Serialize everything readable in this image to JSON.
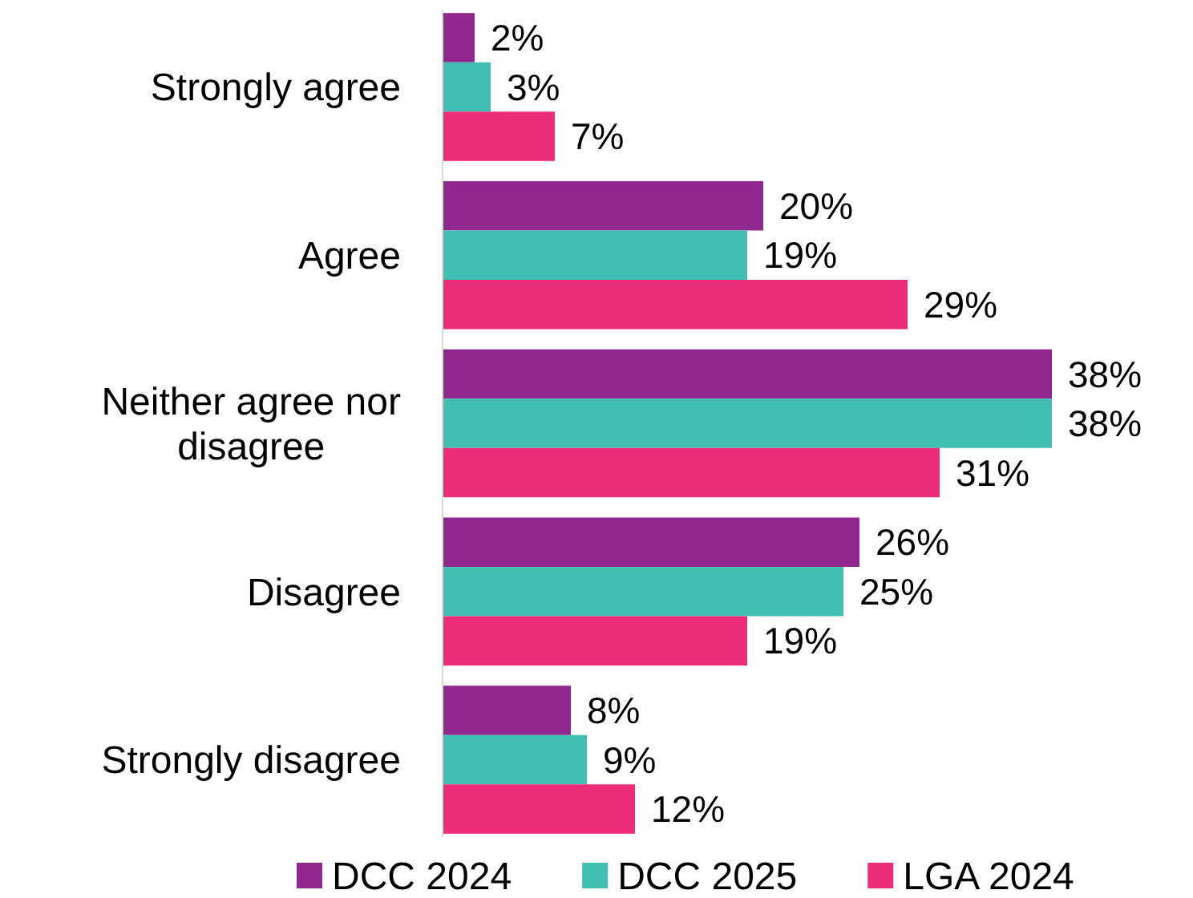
{
  "chart_data": {
    "type": "bar",
    "orientation": "horizontal",
    "categories": [
      "Strongly agree",
      "Agree",
      "Neither agree nor disagree",
      "Disagree",
      "Strongly disagree"
    ],
    "series": [
      {
        "name": "DCC 2024",
        "color": "#92278f",
        "values": [
          2,
          20,
          38,
          26,
          8
        ],
        "value_labels": [
          "2%",
          "20%",
          "38%",
          "26%",
          "8%"
        ]
      },
      {
        "name": "DCC 2025",
        "color": "#41bfb3",
        "values": [
          3,
          19,
          38,
          25,
          9
        ],
        "value_labels": [
          "3%",
          "19%",
          "38%",
          "25%",
          "9%"
        ]
      },
      {
        "name": "LGA 2024",
        "color": "#ee2d7a",
        "values": [
          7,
          29,
          31,
          19,
          12
        ],
        "value_labels": [
          "7%",
          "29%",
          "31%",
          "19%",
          "12%"
        ]
      }
    ],
    "legend": "bottom"
  }
}
